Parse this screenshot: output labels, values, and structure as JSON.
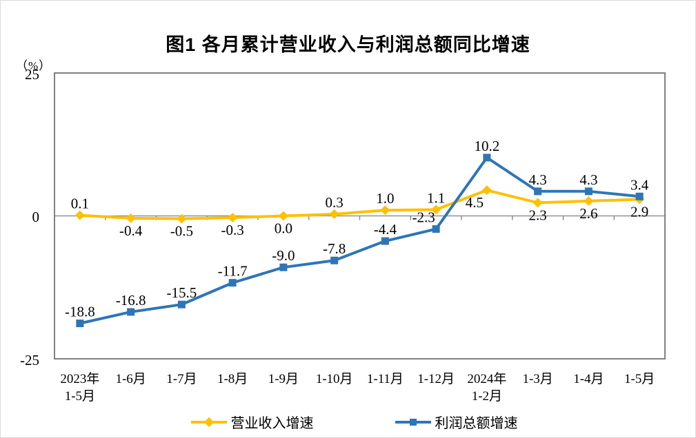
{
  "title": "图1  各月累计营业收入与利润总额同比增速",
  "y_axis": {
    "unit": "（%）",
    "tick_top": "25",
    "tick_zero": "0",
    "tick_bottom": "-25"
  },
  "colors": {
    "revenue_line": "#FFC000",
    "profit_line": "#2E75B6",
    "axis_frame": "#808080",
    "label_text": "#000000"
  },
  "chart_data": {
    "type": "line",
    "title": "图1  各月累计营业收入与利润总额同比增速",
    "ylabel": "（%）",
    "ylim": [
      -25,
      25
    ],
    "grid": false,
    "legend_position": "bottom",
    "categories": [
      [
        "2023年",
        "1-5月"
      ],
      [
        "1-6月"
      ],
      [
        "1-7月"
      ],
      [
        "1-8月"
      ],
      [
        "1-9月"
      ],
      [
        "1-10月"
      ],
      [
        "1-11月"
      ],
      [
        "1-12月"
      ],
      [
        "2024年",
        "1-2月"
      ],
      [
        "1-3月"
      ],
      [
        "1-4月"
      ],
      [
        "1-5月"
      ]
    ],
    "series": [
      {
        "name": "营业收入增速",
        "color": "#FFC000",
        "marker": "diamond",
        "values": [
          0.1,
          -0.4,
          -0.5,
          -0.3,
          0.0,
          0.3,
          1.0,
          1.1,
          4.5,
          2.3,
          2.6,
          2.9
        ],
        "labels": [
          "0.1",
          "-0.4",
          "-0.5",
          "-0.3",
          "0.0",
          "0.3",
          "1.0",
          "1.1",
          "4.5",
          "2.3",
          "2.6",
          "2.9"
        ],
        "label_side": [
          "above",
          "below",
          "below",
          "below",
          "below",
          "above",
          "above",
          "above",
          "below-left",
          "below",
          "below",
          "below"
        ]
      },
      {
        "name": "利润总额增速",
        "color": "#2E75B6",
        "marker": "square",
        "values": [
          -18.8,
          -16.8,
          -15.5,
          -11.7,
          -9.0,
          -7.8,
          -4.4,
          -2.3,
          10.2,
          4.3,
          4.3,
          3.4
        ],
        "labels": [
          "-18.8",
          "-16.8",
          "-15.5",
          "-11.7",
          "-9.0",
          "-7.8",
          "-4.4",
          "-2.3",
          "10.2",
          "4.3",
          "4.3",
          "3.4"
        ],
        "label_side": [
          "above",
          "above",
          "above",
          "above",
          "above",
          "above",
          "above",
          "above-left",
          "above",
          "above",
          "above",
          "above"
        ]
      }
    ]
  }
}
